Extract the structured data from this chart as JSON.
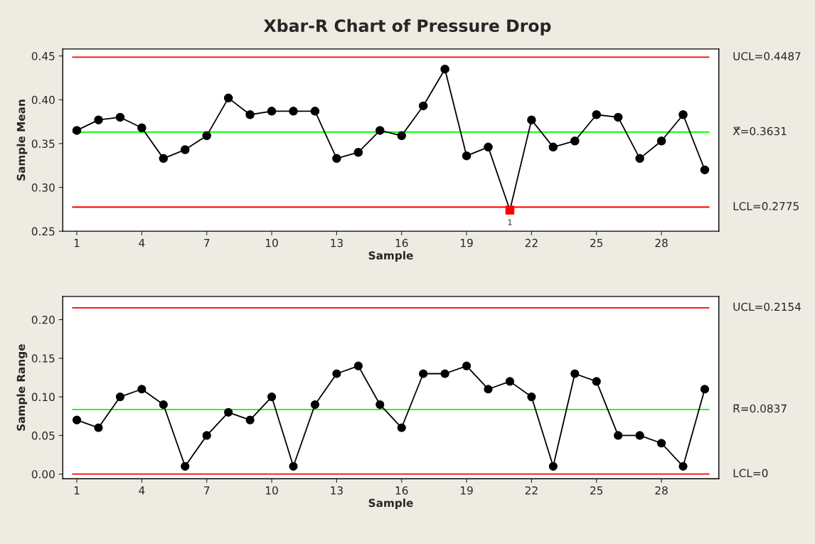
{
  "chart_data": [
    {
      "type": "line",
      "title": "Xbar-R Chart of Pressure Drop",
      "xlabel": "Sample",
      "ylabel": "Sample Mean",
      "x": [
        1,
        2,
        3,
        4,
        5,
        6,
        7,
        8,
        9,
        10,
        11,
        12,
        13,
        14,
        15,
        16,
        17,
        18,
        19,
        20,
        21,
        22,
        23,
        24,
        25,
        26,
        27,
        28,
        29,
        30
      ],
      "series": [
        {
          "color": "#000000",
          "marker": "none",
          "values": [
            0.365,
            0.377,
            0.38,
            0.368,
            0.333,
            0.343,
            0.359,
            0.402,
            0.383,
            0.387,
            0.387,
            0.387,
            0.333,
            0.34,
            0.365,
            0.359,
            0.393,
            0.435,
            0.336,
            0.346,
            0.274,
            0.377,
            0.346,
            0.353,
            0.383,
            0.38,
            0.333,
            0.353,
            0.383,
            0.32
          ]
        },
        {
          "type": "scatter",
          "color": "#000000",
          "marker": "circle",
          "values": [
            0.365,
            0.377,
            0.38,
            0.368,
            0.333,
            0.343,
            0.359,
            0.402,
            0.383,
            0.387,
            0.387,
            0.387,
            0.333,
            0.34,
            0.365,
            0.359,
            0.393,
            0.435,
            0.336,
            0.346,
            null,
            0.377,
            0.346,
            0.353,
            0.383,
            0.38,
            0.333,
            0.353,
            0.383,
            0.32
          ]
        },
        {
          "type": "scatter",
          "color": "#ff0000",
          "marker": "square",
          "x": [
            21
          ],
          "values": [
            0.274
          ]
        }
      ],
      "ref_lines": [
        {
          "axis": "y",
          "value": 0.4487,
          "label": "UCL=0.4487",
          "color": "#ff0000"
        },
        {
          "axis": "y",
          "value": 0.3631,
          "label": "X̿=0.3631",
          "color": "#00ff00"
        },
        {
          "axis": "y",
          "value": 0.2775,
          "label": "LCL=0.2775",
          "color": "#ff0000"
        }
      ],
      "annotations": [
        {
          "text": "1",
          "x": 21,
          "y": 0.274
        }
      ],
      "xlim": [
        0.35,
        30.65
      ],
      "xticks": [
        1,
        4,
        7,
        10,
        13,
        16,
        19,
        22,
        25,
        28
      ],
      "ylim": [
        0.25,
        0.458
      ],
      "yticks": [
        {
          "value": 0.25,
          "label": "0.25"
        },
        {
          "value": 0.3,
          "label": "0.30"
        },
        {
          "value": 0.35,
          "label": "0.35"
        },
        {
          "value": 0.4,
          "label": "0.40"
        },
        {
          "value": 0.45,
          "label": "0.45"
        }
      ],
      "grid": false
    },
    {
      "type": "line",
      "xlabel": "Sample",
      "ylabel": "Sample Range",
      "x": [
        1,
        2,
        3,
        4,
        5,
        6,
        7,
        8,
        9,
        10,
        11,
        12,
        13,
        14,
        15,
        16,
        17,
        18,
        19,
        20,
        21,
        22,
        23,
        24,
        25,
        26,
        27,
        28,
        29,
        30
      ],
      "series": [
        {
          "color": "#000000",
          "marker": "circle",
          "values": [
            0.07,
            0.06,
            0.1,
            0.11,
            0.09,
            0.01,
            0.05,
            0.08,
            0.07,
            0.1,
            0.01,
            0.09,
            0.13,
            0.14,
            0.09,
            0.06,
            0.13,
            0.13,
            0.14,
            0.11,
            0.12,
            0.1,
            0.01,
            0.13,
            0.12,
            0.05,
            0.05,
            0.04,
            0.01,
            0.11
          ]
        }
      ],
      "ref_lines": [
        {
          "axis": "y",
          "value": 0.2154,
          "label": "UCL=0.2154",
          "color": "#ff0000"
        },
        {
          "axis": "y",
          "value": 0.0837,
          "label": "R̄=0.0837",
          "color": "#00ff00"
        },
        {
          "axis": "y",
          "value": 0,
          "label": "LCL=0",
          "color": "#ff0000"
        }
      ],
      "xlim": [
        0.35,
        30.65
      ],
      "xticks": [
        1,
        4,
        7,
        10,
        13,
        16,
        19,
        22,
        25,
        28
      ],
      "ylim": [
        -0.006,
        0.23
      ],
      "yticks": [
        {
          "value": 0,
          "label": "0.00"
        },
        {
          "value": 0.05,
          "label": "0.05"
        },
        {
          "value": 0.1,
          "label": "0.10"
        },
        {
          "value": 0.15,
          "label": "0.15"
        },
        {
          "value": 0.2,
          "label": "0.20"
        }
      ],
      "grid": false
    }
  ]
}
